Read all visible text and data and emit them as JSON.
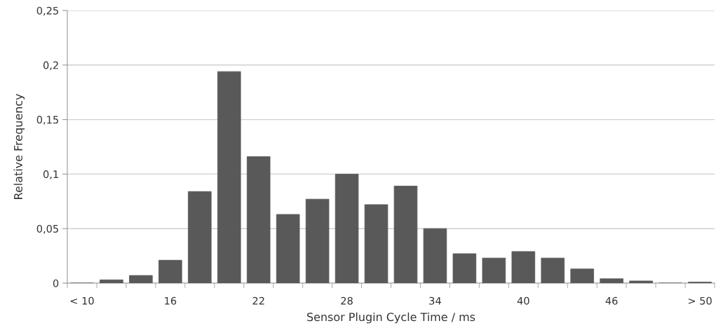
{
  "chart_data": {
    "type": "bar",
    "xlabel": "Sensor Plugin Cycle Time / ms",
    "ylabel": "Relative Frequency",
    "categories": [
      "< 10",
      null,
      null,
      "16",
      null,
      null,
      "22",
      null,
      null,
      "28",
      null,
      null,
      "34",
      null,
      null,
      "40",
      null,
      null,
      "46",
      null,
      null,
      "> 50"
    ],
    "values": [
      0,
      0.003,
      0.007,
      0.021,
      0.084,
      0.194,
      0.116,
      0.063,
      0.077,
      0.1,
      0.072,
      0.089,
      0.05,
      0.027,
      0.023,
      0.029,
      0.023,
      0.013,
      0.004,
      0.002,
      0,
      0.001
    ],
    "color": "#595959",
    "ylim": [
      0,
      0.25
    ],
    "yticks": [
      {
        "value": 0,
        "label": "0"
      },
      {
        "value": 0.05,
        "label": "0,05"
      },
      {
        "value": 0.1,
        "label": "0,1"
      },
      {
        "value": 0.15,
        "label": "0,15"
      },
      {
        "value": 0.2,
        "label": "0,2"
      },
      {
        "value": 0.25,
        "label": "0,25"
      }
    ],
    "grid": "y",
    "legend": false
  }
}
